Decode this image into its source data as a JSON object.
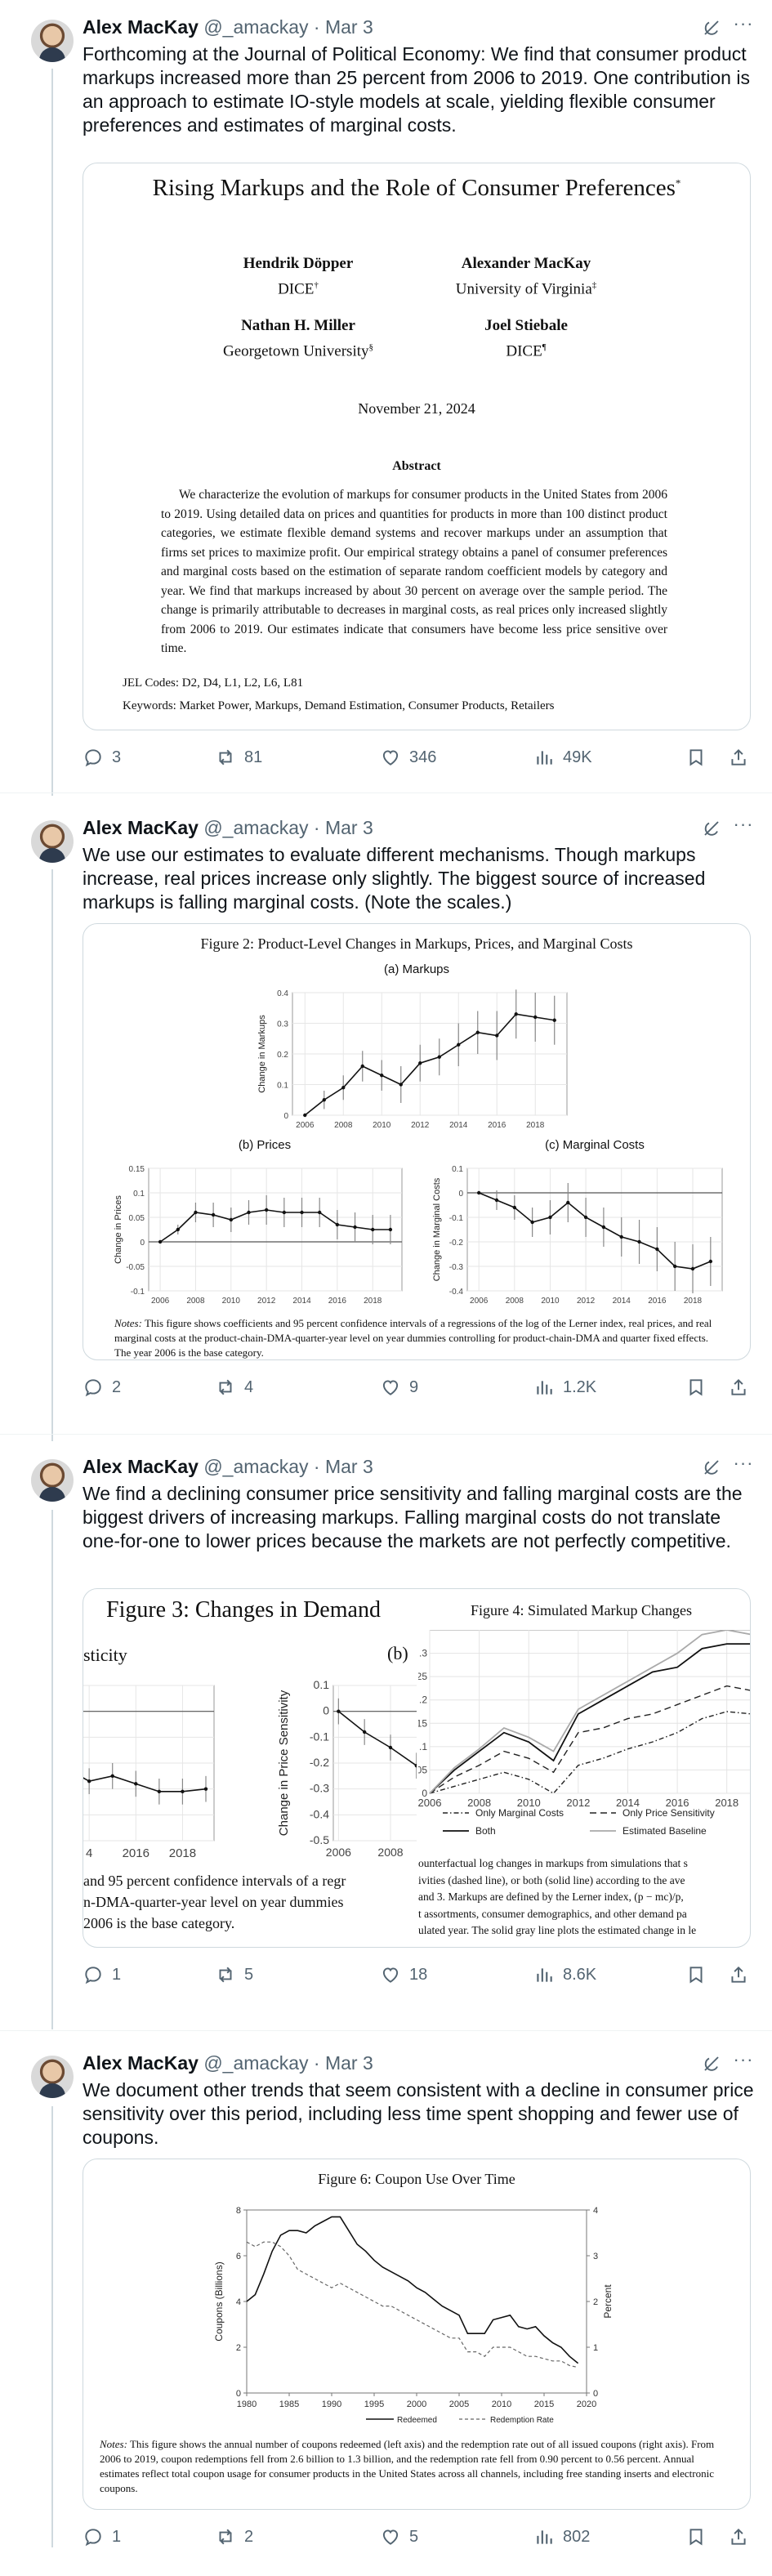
{
  "tweets": [
    {
      "author": "Alex MacKay",
      "handle": "@_amackay",
      "date": "Mar 3",
      "text": "Forthcoming at the Journal of Political Economy: We find that consumer product markups increased more than 25 percent from 2006 to 2019. One contribution is an approach to estimate IO-style models at scale, yielding flexible consumer preferences and estimates of marginal costs.",
      "stats": {
        "replies": "3",
        "reposts": "81",
        "likes": "346",
        "views": "49K"
      },
      "paper": {
        "title": "Rising Markups and the Role of Consumer Preferences",
        "title_mark": "*",
        "authors": [
          {
            "name": "Hendrik Döpper",
            "affil": "DICE",
            "mark": "†"
          },
          {
            "name": "Alexander MacKay",
            "affil": "University of Virginia",
            "mark": "‡"
          },
          {
            "name": "Nathan H. Miller",
            "affil": "Georgetown University",
            "mark": "§"
          },
          {
            "name": "Joel Stiebale",
            "affil": "DICE",
            "mark": "¶"
          }
        ],
        "date": "November 21, 2024",
        "abstract_heading": "Abstract",
        "abstract": "We characterize the evolution of markups for consumer products in the United States from 2006 to 2019. Using detailed data on prices and quantities for products in more than 100 distinct product categories, we estimate flexible demand systems and recover markups under an assumption that firms set prices to maximize profit. Our empirical strategy obtains a panel of consumer preferences and marginal costs based on the estimation of separate random coefficient models by category and year. We find that markups increased by about 30 percent on average over the sample period. The change is primarily attributable to decreases in marginal costs, as real prices only increased slightly from 2006 to 2019. Our estimates indicate that consumers have become less price sensitive over time.",
        "jel": "JEL Codes: D2, D4, L1, L2, L6, L81",
        "keywords": "Keywords: Market Power, Markups, Demand Estimation, Consumer Products, Retailers"
      }
    },
    {
      "author": "Alex MacKay",
      "handle": "@_amackay",
      "date": "Mar 3",
      "text": "We use our estimates to evaluate different mechanisms. Though markups increase, real prices increase only slightly. The biggest source of increased markups is falling marginal costs. (Note the scales.)",
      "stats": {
        "replies": "2",
        "reposts": "4",
        "likes": "9",
        "views": "1.2K"
      },
      "figure": {
        "title": "Figure 2: Product-Level Changes in Markups, Prices, and Marginal Costs",
        "notes_label": "Notes:",
        "notes": "This figure shows coefficients and 95 percent confidence intervals of a regressions of the log of the Lerner index, real prices, and real marginal costs at the product-chain-DMA-quarter-year level on year dummies controlling for product-chain-DMA and quarter fixed effects. The year 2006 is the base category."
      }
    },
    {
      "author": "Alex MacKay",
      "handle": "@_amackay",
      "date": "Mar 3",
      "text": "We find a declining consumer price sensitivity and falling marginal costs are the biggest drivers of increasing markups. Falling marginal costs do not translate one-for-one to lower prices because the markets are not perfectly competitive.",
      "stats": {
        "replies": "1",
        "reposts": "5",
        "likes": "18",
        "views": "8.6K"
      },
      "fig3": {
        "title": "Figure 3:  Changes in Demand",
        "left_label": "sticity",
        "panel_b": "(b)",
        "note_1": "and 95 percent confidence intervals of a regr",
        "note_2": "n-DMA-quarter-year level on year dummies",
        "note_3": "2006 is the base category."
      },
      "fig4": {
        "title": "Figure 4:  Simulated Markup Changes",
        "note_1": "ounterfactual log changes in markups from simulations that s",
        "note_2": "ivities (dashed line), or both (solid line) according to the ave",
        "note_3": "and 3. Markups are defined by the Lerner index, (p − mc)/p,",
        "note_4": "t assortments, consumer demographics, and other demand pa",
        "note_5": "ulated year. The solid gray line plots the estimated change in le"
      }
    },
    {
      "author": "Alex MacKay",
      "handle": "@_amackay",
      "date": "Mar 3",
      "text": "We document other trends that seem consistent with a decline in consumer price sensitivity over this period, including less time spent shopping and fewer use of coupons.",
      "stats": {
        "replies": "1",
        "reposts": "2",
        "likes": "5",
        "views": "802"
      },
      "figure": {
        "title": "Figure 6: Coupon Use Over Time",
        "notes_label": "Notes:",
        "notes": "This figure shows the annual number of coupons redeemed (left axis) and the redemption rate out of all issued coupons (right axis). From 2006 to 2019, coupon redemptions fell from 2.6 billion to 1.3 billion, and the redemption rate fell from 0.90 percent to 0.56 percent. Annual estimates reflect total coupon usage for consumer products in the United States across all channels, including free standing inserts and electronic coupons."
      }
    }
  ],
  "chart_data": [
    {
      "type": "line",
      "title": "(a) Markups",
      "xlabel": "",
      "ylabel": "Change in Markups",
      "x": [
        2006,
        2007,
        2008,
        2009,
        2010,
        2011,
        2012,
        2013,
        2014,
        2015,
        2016,
        2017,
        2018,
        2019
      ],
      "values": [
        0.0,
        0.05,
        0.09,
        0.16,
        0.13,
        0.1,
        0.17,
        0.19,
        0.23,
        0.27,
        0.26,
        0.33,
        0.32,
        0.31
      ],
      "ci_half": [
        0.0,
        0.03,
        0.04,
        0.05,
        0.05,
        0.06,
        0.06,
        0.06,
        0.07,
        0.07,
        0.08,
        0.08,
        0.08,
        0.08
      ],
      "xlim": [
        2006,
        2019
      ],
      "ylim": [
        0,
        0.4
      ],
      "xticks": [
        "2006",
        "2008",
        "2010",
        "2012",
        "2014",
        "2016",
        "2018"
      ],
      "yticks": [
        "0",
        "0.1",
        "0.2",
        "0.3",
        "0.4"
      ]
    },
    {
      "type": "line",
      "title": "(b) Prices",
      "xlabel": "",
      "ylabel": "Change in Prices",
      "x": [
        2006,
        2007,
        2008,
        2009,
        2010,
        2011,
        2012,
        2013,
        2014,
        2015,
        2016,
        2017,
        2018,
        2019
      ],
      "values": [
        0.0,
        0.025,
        0.06,
        0.055,
        0.045,
        0.06,
        0.065,
        0.06,
        0.06,
        0.06,
        0.035,
        0.03,
        0.025,
        0.025
      ],
      "ci_half": [
        0.0,
        0.01,
        0.02,
        0.025,
        0.025,
        0.025,
        0.03,
        0.03,
        0.03,
        0.03,
        0.03,
        0.03,
        0.03,
        0.03
      ],
      "xlim": [
        2006,
        2019
      ],
      "ylim": [
        -0.1,
        0.15
      ],
      "xticks": [
        "2006",
        "2008",
        "2010",
        "2012",
        "2014",
        "2016",
        "2018"
      ],
      "yticks": [
        "-0.1",
        "-0.05",
        "0",
        "0.05",
        "0.1",
        "0.15"
      ]
    },
    {
      "type": "line",
      "title": "(c) Marginal Costs",
      "xlabel": "",
      "ylabel": "Change in Marginal Costs",
      "x": [
        2006,
        2007,
        2008,
        2009,
        2010,
        2011,
        2012,
        2013,
        2014,
        2015,
        2016,
        2017,
        2018,
        2019
      ],
      "values": [
        0.0,
        -0.03,
        -0.06,
        -0.12,
        -0.1,
        -0.04,
        -0.1,
        -0.14,
        -0.18,
        -0.2,
        -0.23,
        -0.3,
        -0.31,
        -0.28
      ],
      "ci_half": [
        0.0,
        0.04,
        0.05,
        0.06,
        0.07,
        0.08,
        0.08,
        0.08,
        0.08,
        0.09,
        0.09,
        0.1,
        0.1,
        0.1
      ],
      "xlim": [
        2006,
        2019
      ],
      "ylim": [
        -0.4,
        0.1
      ],
      "xticks": [
        "2006",
        "2008",
        "2010",
        "2012",
        "2014",
        "2016",
        "2018"
      ],
      "yticks": [
        "-0.4",
        "-0.3",
        "-0.2",
        "-0.1",
        "0",
        "0.1"
      ]
    },
    {
      "type": "line",
      "title": "",
      "xlabel": "",
      "ylabel": "",
      "x": [
        2013,
        2014,
        2015,
        2016,
        2017,
        2018,
        2019
      ],
      "values": [
        -0.22,
        -0.27,
        -0.25,
        -0.28,
        -0.31,
        -0.31,
        -0.3
      ],
      "ylim": [
        -0.5,
        0.1
      ],
      "xticks": [
        "4",
        "2016",
        "2018"
      ],
      "yticks": []
    },
    {
      "type": "line",
      "title": "",
      "xlabel": "",
      "ylabel": "Change in Price Sensitivity",
      "x": [
        2006,
        2007,
        2008,
        2009,
        2010
      ],
      "values": [
        0.0,
        -0.08,
        -0.14,
        -0.21,
        -0.24
      ],
      "ylim": [
        -0.5,
        0.1
      ],
      "xticks": [
        "2006",
        "2008"
      ],
      "yticks": [
        "0.1",
        "0",
        "-0.1",
        "-0.2",
        "-0.3",
        "-0.4",
        "-0.5"
      ]
    },
    {
      "type": "line",
      "title": "Figure 4:  Simulated Markup Changes",
      "xlabel": "",
      "ylabel": "",
      "x": [
        2006,
        2007,
        2008,
        2009,
        2010,
        2011,
        2012,
        2013,
        2014,
        2015,
        2016,
        2017,
        2018,
        2019
      ],
      "series": [
        {
          "name": "Only Marginal Costs",
          "values": [
            0.0,
            0.015,
            0.03,
            0.045,
            0.03,
            0.0,
            0.06,
            0.075,
            0.095,
            0.11,
            0.13,
            0.16,
            0.175,
            0.17
          ]
        },
        {
          "name": "Only Price Sensitivity",
          "values": [
            0.0,
            0.035,
            0.06,
            0.09,
            0.075,
            0.045,
            0.13,
            0.14,
            0.16,
            0.17,
            0.19,
            0.21,
            0.23,
            0.22
          ]
        },
        {
          "name": "Both",
          "values": [
            0.0,
            0.05,
            0.09,
            0.13,
            0.11,
            0.07,
            0.17,
            0.2,
            0.23,
            0.26,
            0.27,
            0.31,
            0.32,
            0.32
          ]
        },
        {
          "name": "Estimated Baseline",
          "values": [
            0.0,
            0.055,
            0.095,
            0.14,
            0.12,
            0.09,
            0.18,
            0.21,
            0.24,
            0.27,
            0.3,
            0.34,
            0.35,
            0.34
          ]
        }
      ],
      "ylim": [
        0,
        0.35
      ],
      "xticks": [
        "2006",
        "2008",
        "2010",
        "2012",
        "2014",
        "2016",
        "2018"
      ],
      "yticks": [
        ".3",
        ".25",
        ".2",
        ".15",
        ".1",
        ".05",
        "0"
      ]
    },
    {
      "type": "line",
      "title": "Figure 6: Coupon Use Over Time",
      "xlabel": "",
      "ylabel": "Coupons (Billions)",
      "ylabel_right": "Percent",
      "x": [
        1980,
        1981,
        1982,
        1983,
        1984,
        1985,
        1986,
        1987,
        1988,
        1989,
        1990,
        1991,
        1992,
        1993,
        1994,
        1995,
        1996,
        1997,
        1998,
        1999,
        2000,
        2001,
        2002,
        2003,
        2004,
        2005,
        2006,
        2007,
        2008,
        2009,
        2010,
        2011,
        2012,
        2013,
        2014,
        2015,
        2016,
        2017,
        2018,
        2019
      ],
      "series": [
        {
          "name": "Redeemed",
          "axis": "left",
          "values": [
            4.0,
            4.3,
            5.2,
            6.2,
            6.9,
            7.1,
            7.1,
            7.0,
            7.3,
            7.5,
            7.7,
            7.7,
            7.1,
            6.5,
            6.2,
            5.8,
            5.5,
            5.3,
            5.1,
            4.9,
            4.6,
            4.4,
            4.1,
            3.8,
            3.6,
            3.4,
            2.6,
            2.6,
            2.6,
            3.2,
            3.3,
            3.4,
            2.9,
            2.8,
            2.9,
            2.5,
            2.2,
            2.0,
            1.6,
            1.3
          ]
        },
        {
          "name": "Redemption Rate",
          "axis": "right",
          "values": [
            3.3,
            3.2,
            3.3,
            3.3,
            3.2,
            3.0,
            2.7,
            2.6,
            2.5,
            2.4,
            2.3,
            2.4,
            2.3,
            2.2,
            2.1,
            2.0,
            1.9,
            1.9,
            1.8,
            1.7,
            1.6,
            1.5,
            1.4,
            1.3,
            1.2,
            1.2,
            0.9,
            0.9,
            0.8,
            1.0,
            1.0,
            1.0,
            0.9,
            0.8,
            0.8,
            0.75,
            0.7,
            0.7,
            0.6,
            0.56
          ]
        }
      ],
      "xlim": [
        1980,
        2020
      ],
      "ylim": [
        0,
        8
      ],
      "ylim_right": [
        0,
        4
      ],
      "xticks": [
        "1980",
        "1985",
        "1990",
        "1995",
        "2000",
        "2005",
        "2010",
        "2015",
        "2020"
      ],
      "yticks": [
        "0",
        "2",
        "4",
        "6",
        "8"
      ],
      "yticks_right": [
        "0",
        "1",
        "2",
        "3",
        "4"
      ]
    }
  ]
}
